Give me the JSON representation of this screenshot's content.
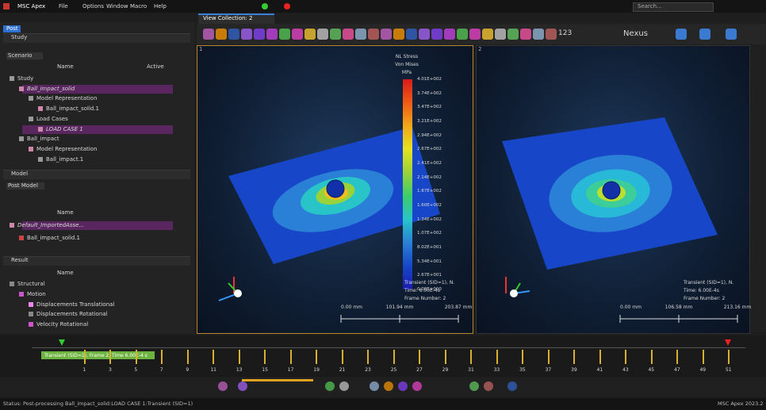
{
  "title_bar": {
    "app": "MSC Apex",
    "menus": [
      "File",
      "Options",
      "Window",
      "Macro",
      "Help"
    ],
    "search": "Search..."
  },
  "left_panel": {
    "post_tab": "Post",
    "study": {
      "header": "Study",
      "dropdown": "Scenario",
      "columns": [
        "Name",
        "Active"
      ],
      "rows": [
        "Study",
        "Ball_impact_solid",
        "Model Representation",
        "Ball_impact_solid.1",
        "Load Cases",
        "LOAD CASE 1",
        "Ball_impact",
        "Model Representation",
        "Ball_impact.1"
      ]
    },
    "model": {
      "header": "Model",
      "dropdown": "Post Model",
      "columns": [
        "Name"
      ],
      "rows": [
        "Default_ImportedAsse...",
        "Ball_impact_solid.1"
      ]
    },
    "result": {
      "header": "Result",
      "columns": [
        "Name"
      ],
      "rows": [
        "Structural",
        "Motion",
        "Displacements Translational",
        "Displacements Rotational",
        "Velocity Rotational"
      ]
    }
  },
  "view_tab": "View Collection: 2",
  "toolbar": {
    "counter": "123",
    "nexus": "Nexus"
  },
  "viewports": [
    {
      "id": "1",
      "legend": {
        "title": [
          "NL Stress",
          "Von Mises",
          "MPa"
        ],
        "labels": [
          "4.01E+002",
          "3.74E+002",
          "3.47E+002",
          "3.21E+002",
          "2.94E+002",
          "2.67E+002",
          "2.41E+002",
          "2.14E+002",
          "1.87E+002",
          "1.60E+002",
          "1.34E+002",
          "1.07E+002",
          "8.02E+001",
          "5.34E+001",
          "2.67E+001",
          "0.00E+000"
        ]
      },
      "info": [
        "Transient (SID=1), N.",
        "Time: 6.00E-4s",
        "Frame Number: 2"
      ],
      "scale": [
        "0.00 mm",
        "101.94 mm",
        "203.87 mm"
      ]
    },
    {
      "id": "2",
      "info": [
        "Transient (SID=1), N.",
        "Time: 6.00E-4s",
        "Frame Number: 2"
      ],
      "scale": [
        "0.00 mm",
        "106.58 mm",
        "213.16 mm"
      ]
    }
  ],
  "timeline": {
    "bar_label": "Transient (SID=1), Frame 2, Time 6.00E-4 s",
    "frames": [
      1,
      3,
      5,
      7,
      9,
      11,
      13,
      15,
      17,
      19,
      21,
      23,
      25,
      27,
      29,
      31,
      33,
      35,
      37,
      39,
      41,
      43,
      45,
      47,
      49,
      51
    ]
  },
  "status": {
    "text": "Status: Post-processing Ball_impact_solid:LOAD CASE 1:Transient (SID=1)",
    "version": "MSC Apex 2023.2"
  }
}
